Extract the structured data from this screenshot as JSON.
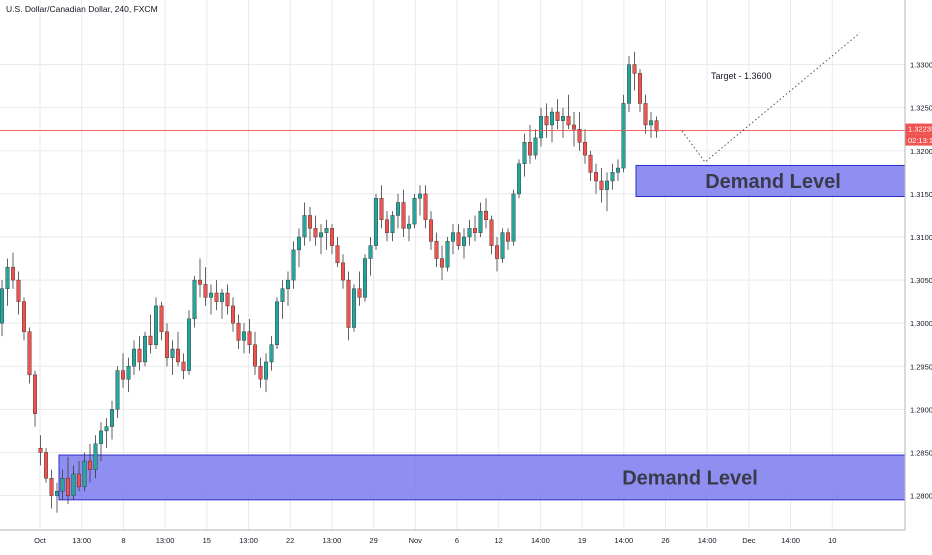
{
  "chart_data": {
    "type": "candlestick",
    "title": "U.S. Dollar/Canadian Dollar, 240, FXCM",
    "symbol": "U.S. Dollar/Canadian Dollar",
    "interval": "240",
    "source": "FXCM",
    "ylim": [
      1.276,
      1.3375
    ],
    "y_ticks": [
      "1.33000",
      "1.32500",
      "1.32000",
      "1.31500",
      "1.31000",
      "1.30500",
      "1.30000",
      "1.29500",
      "1.29000",
      "1.28500",
      "1.28000"
    ],
    "x_ticks": [
      "Oct",
      "13:00",
      "8",
      "13:00",
      "15",
      "13:00",
      "22",
      "13:00",
      "29",
      "Nov",
      "6",
      "12",
      "14:00",
      "19",
      "14:00",
      "26",
      "14:00",
      "Dec",
      "14:00",
      "10"
    ],
    "current_price": {
      "label": "1.32235",
      "value": 1.32235,
      "countdown": "02:13:10",
      "color": "#ef5350"
    },
    "colors": {
      "up": "#26a69a",
      "down": "#ef5350",
      "zone_fill": "#7b7bf0",
      "zone_border": "#2d2dcc",
      "grid": "#e8eaee"
    },
    "zones": [
      {
        "label": "Demand Level",
        "y_low": 1.3147,
        "y_high": 1.3183
      },
      {
        "label": "Demand Level",
        "y_low": 1.2795,
        "y_high": 1.2847
      }
    ],
    "projection": {
      "label": "Target - 1.3600",
      "points": [
        [
          1.3223
        ],
        [
          1.3187
        ],
        [
          1.3337
        ]
      ]
    },
    "candles": [
      [
        1.3,
        1.305,
        1.2985,
        1.304
      ],
      [
        1.304,
        1.3075,
        1.302,
        1.3065
      ],
      [
        1.3065,
        1.3082,
        1.304,
        1.305
      ],
      [
        1.305,
        1.306,
        1.301,
        1.3025
      ],
      [
        1.3025,
        1.303,
        1.298,
        1.299
      ],
      [
        1.299,
        1.2995,
        1.293,
        1.294
      ],
      [
        1.294,
        1.2945,
        1.288,
        1.2895
      ],
      [
        1.2855,
        1.287,
        1.2835,
        1.285
      ],
      [
        1.285,
        1.2855,
        1.2815,
        1.282
      ],
      [
        1.282,
        1.283,
        1.2785,
        1.28
      ],
      [
        1.28,
        1.2815,
        1.278,
        1.2805
      ],
      [
        1.2805,
        1.283,
        1.2795,
        1.282
      ],
      [
        1.282,
        1.2845,
        1.279,
        1.28
      ],
      [
        1.28,
        1.2835,
        1.2795,
        1.2825
      ],
      [
        1.2825,
        1.284,
        1.2805,
        1.281
      ],
      [
        1.281,
        1.285,
        1.2805,
        1.284
      ],
      [
        1.284,
        1.286,
        1.2815,
        1.283
      ],
      [
        1.283,
        1.287,
        1.282,
        1.286
      ],
      [
        1.286,
        1.2885,
        1.284,
        1.2875
      ],
      [
        1.2875,
        1.289,
        1.2855,
        1.288
      ],
      [
        1.288,
        1.291,
        1.2865,
        1.29
      ],
      [
        1.29,
        1.295,
        1.289,
        1.2945
      ],
      [
        1.2945,
        1.2965,
        1.2925,
        1.2935
      ],
      [
        1.2935,
        1.296,
        1.292,
        1.295
      ],
      [
        1.295,
        1.298,
        1.294,
        1.297
      ],
      [
        1.297,
        1.2985,
        1.2945,
        1.2955
      ],
      [
        1.2955,
        1.299,
        1.295,
        1.2985
      ],
      [
        1.2985,
        1.301,
        1.2965,
        1.2975
      ],
      [
        1.2975,
        1.303,
        1.297,
        1.302
      ],
      [
        1.302,
        1.3025,
        1.298,
        1.299
      ],
      [
        1.299,
        1.3,
        1.295,
        1.296
      ],
      [
        1.296,
        1.298,
        1.294,
        1.297
      ],
      [
        1.297,
        1.299,
        1.295,
        1.2955
      ],
      [
        1.2955,
        1.2965,
        1.2935,
        1.2945
      ],
      [
        1.2945,
        1.3015,
        1.294,
        1.3005
      ],
      [
        1.3005,
        1.3055,
        1.2995,
        1.305
      ],
      [
        1.305,
        1.3075,
        1.303,
        1.3045
      ],
      [
        1.3045,
        1.3065,
        1.302,
        1.303
      ],
      [
        1.303,
        1.3045,
        1.301,
        1.3035
      ],
      [
        1.3035,
        1.305,
        1.3015,
        1.3025
      ],
      [
        1.3025,
        1.304,
        1.3005,
        1.3035
      ],
      [
        1.3035,
        1.3045,
        1.301,
        1.302
      ],
      [
        1.302,
        1.303,
        1.299,
        1.3
      ],
      [
        1.3,
        1.301,
        1.297,
        1.298
      ],
      [
        1.298,
        1.3,
        1.2965,
        1.299
      ],
      [
        1.299,
        1.3005,
        1.2965,
        1.2975
      ],
      [
        1.2975,
        1.299,
        1.294,
        1.295
      ],
      [
        1.295,
        1.296,
        1.2925,
        1.2935
      ],
      [
        1.2935,
        1.2965,
        1.292,
        1.2955
      ],
      [
        1.2955,
        1.2985,
        1.2945,
        1.2975
      ],
      [
        1.2975,
        1.303,
        1.297,
        1.3025
      ],
      [
        1.3025,
        1.305,
        1.3005,
        1.304
      ],
      [
        1.304,
        1.306,
        1.302,
        1.305
      ],
      [
        1.305,
        1.3095,
        1.304,
        1.3085
      ],
      [
        1.3085,
        1.311,
        1.3065,
        1.31
      ],
      [
        1.31,
        1.314,
        1.309,
        1.3125
      ],
      [
        1.3125,
        1.3135,
        1.3095,
        1.311
      ],
      [
        1.311,
        1.3125,
        1.309,
        1.31
      ],
      [
        1.31,
        1.3115,
        1.308,
        1.3105
      ],
      [
        1.3105,
        1.312,
        1.3085,
        1.311
      ],
      [
        1.311,
        1.3115,
        1.308,
        1.309
      ],
      [
        1.309,
        1.31,
        1.3065,
        1.307
      ],
      [
        1.307,
        1.308,
        1.304,
        1.305
      ],
      [
        1.305,
        1.306,
        1.298,
        1.2995
      ],
      [
        1.2995,
        1.3045,
        1.299,
        1.304
      ],
      [
        1.304,
        1.306,
        1.302,
        1.303
      ],
      [
        1.303,
        1.308,
        1.3025,
        1.3075
      ],
      [
        1.3075,
        1.31,
        1.3055,
        1.309
      ],
      [
        1.309,
        1.315,
        1.3085,
        1.3145
      ],
      [
        1.3145,
        1.316,
        1.311,
        1.312
      ],
      [
        1.312,
        1.313,
        1.3095,
        1.3105
      ],
      [
        1.3105,
        1.313,
        1.3095,
        1.3125
      ],
      [
        1.3125,
        1.315,
        1.311,
        1.314
      ],
      [
        1.314,
        1.3155,
        1.31,
        1.311
      ],
      [
        1.311,
        1.3125,
        1.3095,
        1.3115
      ],
      [
        1.3115,
        1.315,
        1.311,
        1.3145
      ],
      [
        1.3145,
        1.316,
        1.3125,
        1.315
      ],
      [
        1.315,
        1.316,
        1.311,
        1.312
      ],
      [
        1.312,
        1.313,
        1.3085,
        1.3095
      ],
      [
        1.3095,
        1.3105,
        1.3065,
        1.3075
      ],
      [
        1.3075,
        1.309,
        1.305,
        1.3065
      ],
      [
        1.3065,
        1.31,
        1.306,
        1.3095
      ],
      [
        1.3095,
        1.3115,
        1.308,
        1.3105
      ],
      [
        1.3105,
        1.3115,
        1.3085,
        1.309
      ],
      [
        1.309,
        1.311,
        1.3075,
        1.31
      ],
      [
        1.31,
        1.312,
        1.309,
        1.311
      ],
      [
        1.311,
        1.3125,
        1.3095,
        1.3105
      ],
      [
        1.3105,
        1.314,
        1.31,
        1.313
      ],
      [
        1.313,
        1.3145,
        1.311,
        1.312
      ],
      [
        1.312,
        1.3125,
        1.308,
        1.309
      ],
      [
        1.309,
        1.31,
        1.306,
        1.3075
      ],
      [
        1.3075,
        1.311,
        1.307,
        1.3105
      ],
      [
        1.3105,
        1.311,
        1.3085,
        1.3095
      ],
      [
        1.3095,
        1.3155,
        1.309,
        1.315
      ],
      [
        1.315,
        1.319,
        1.3145,
        1.3185
      ],
      [
        1.3185,
        1.322,
        1.317,
        1.321
      ],
      [
        1.321,
        1.323,
        1.3185,
        1.3195
      ],
      [
        1.3195,
        1.3225,
        1.319,
        1.3215
      ],
      [
        1.3215,
        1.325,
        1.3205,
        1.324
      ],
      [
        1.324,
        1.3255,
        1.3215,
        1.323
      ],
      [
        1.323,
        1.325,
        1.321,
        1.3245
      ],
      [
        1.3245,
        1.326,
        1.3225,
        1.3235
      ],
      [
        1.3235,
        1.325,
        1.3215,
        1.324
      ],
      [
        1.324,
        1.3265,
        1.3225,
        1.323
      ],
      [
        1.323,
        1.3245,
        1.3205,
        1.3225
      ],
      [
        1.3225,
        1.3245,
        1.32,
        1.321
      ],
      [
        1.321,
        1.3225,
        1.3185,
        1.3195
      ],
      [
        1.3195,
        1.32,
        1.3165,
        1.3175
      ],
      [
        1.3175,
        1.3185,
        1.315,
        1.3165
      ],
      [
        1.3165,
        1.318,
        1.314,
        1.3155
      ],
      [
        1.3155,
        1.3175,
        1.313,
        1.3165
      ],
      [
        1.3165,
        1.3185,
        1.3155,
        1.3175
      ],
      [
        1.3175,
        1.319,
        1.3165,
        1.318
      ],
      [
        1.318,
        1.3265,
        1.3175,
        1.3255
      ],
      [
        1.3255,
        1.331,
        1.3245,
        1.33
      ],
      [
        1.33,
        1.3315,
        1.327,
        1.329
      ],
      [
        1.329,
        1.3295,
        1.3245,
        1.3255
      ],
      [
        1.3255,
        1.3265,
        1.322,
        1.323
      ],
      [
        1.323,
        1.3245,
        1.3215,
        1.3235
      ],
      [
        1.3235,
        1.324,
        1.3215,
        1.3223
      ]
    ]
  }
}
